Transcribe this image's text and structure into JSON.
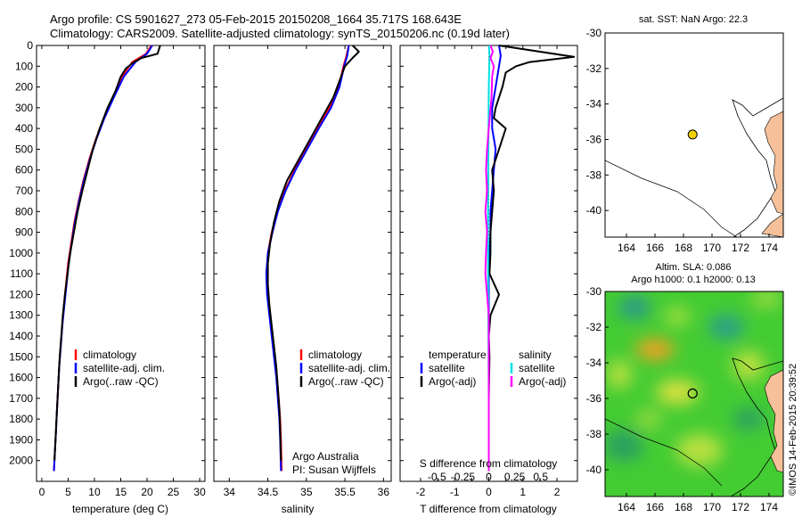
{
  "header": {
    "title_line1": "Argo profile: CS 5901627_273 05-Feb-2015 20150208_1664 35.717S 168.643E",
    "title_line2": "Climatology: CARS2009. Satellite-adjusted climatology: synTS_20150206.nc (0.19d later)"
  },
  "colors": {
    "climatology": "#ff0000",
    "satellite": "#0000ff",
    "argo": "#000000",
    "sal_satellite": "#00e0e0",
    "sal_argo": "#ff00ff",
    "land": "#f5c09a",
    "float": "#f0d000",
    "sla_base": "#33cc33"
  },
  "watermark": "©IMOS 14-Feb-2015 20:39:52",
  "chart_data": [
    {
      "type": "line",
      "id": "temperature",
      "xlabel": "temperature (deg C)",
      "ylabel": "",
      "xlim": [
        -1,
        31
      ],
      "ylim": [
        2100,
        0
      ],
      "xticks": [
        "0",
        "5",
        "10",
        "15",
        "20",
        "25",
        "30"
      ],
      "yticks": [
        "0",
        "100",
        "200",
        "300",
        "400",
        "500",
        "600",
        "700",
        "800",
        "900",
        "1000",
        "1100",
        "1200",
        "1300",
        "1400",
        "1500",
        "1600",
        "1700",
        "1800",
        "1900",
        "2000"
      ],
      "legend": [
        "climatology",
        "satellite-adj. clim.",
        "Argo(..raw -QC)"
      ],
      "series": [
        {
          "name": "climatology",
          "color": "red",
          "points": [
            [
              20.8,
              0
            ],
            [
              19.8,
              40
            ],
            [
              17.2,
              80
            ],
            [
              15.2,
              150
            ],
            [
              13.5,
              250
            ],
            [
              11.8,
              350
            ],
            [
              10.3,
              450
            ],
            [
              9,
              550
            ],
            [
              7.9,
              650
            ],
            [
              7,
              750
            ],
            [
              6.2,
              850
            ],
            [
              5.6,
              950
            ],
            [
              5,
              1050
            ],
            [
              4.6,
              1150
            ],
            [
              4.2,
              1250
            ],
            [
              3.9,
              1350
            ],
            [
              3.6,
              1450
            ],
            [
              3.3,
              1550
            ],
            [
              3.1,
              1650
            ],
            [
              2.9,
              1750
            ],
            [
              2.7,
              1850
            ],
            [
              2.5,
              1950
            ],
            [
              2.3,
              2050
            ]
          ]
        },
        {
          "name": "satellite-adj. clim.",
          "color": "blue",
          "points": [
            [
              21,
              0
            ],
            [
              20,
              40
            ],
            [
              17.8,
              80
            ],
            [
              15.6,
              150
            ],
            [
              13.7,
              250
            ],
            [
              11.9,
              350
            ],
            [
              10.4,
              450
            ],
            [
              9.1,
              550
            ],
            [
              8,
              650
            ],
            [
              7.1,
              750
            ],
            [
              6.3,
              850
            ],
            [
              5.7,
              950
            ],
            [
              5.1,
              1050
            ],
            [
              4.7,
              1150
            ],
            [
              4.3,
              1250
            ],
            [
              3.9,
              1350
            ],
            [
              3.6,
              1450
            ],
            [
              3.3,
              1550
            ],
            [
              3.1,
              1650
            ],
            [
              2.9,
              1750
            ],
            [
              2.7,
              1850
            ],
            [
              2.5,
              1950
            ],
            [
              2.3,
              2050
            ]
          ]
        },
        {
          "name": "Argo(..raw -QC)",
          "color": "black",
          "points": [
            [
              22.5,
              0
            ],
            [
              22.3,
              15
            ],
            [
              22,
              40
            ],
            [
              19,
              60
            ],
            [
              17.5,
              80
            ],
            [
              16,
              110
            ],
            [
              15,
              150
            ],
            [
              14,
              220
            ],
            [
              12.5,
              300
            ],
            [
              11,
              400
            ],
            [
              9.7,
              500
            ],
            [
              8.7,
              600
            ],
            [
              7.7,
              700
            ],
            [
              6.8,
              800
            ],
            [
              6.1,
              900
            ],
            [
              5.4,
              1000
            ],
            [
              4.9,
              1100
            ],
            [
              4.4,
              1200
            ],
            [
              4,
              1300
            ],
            [
              3.7,
              1400
            ],
            [
              3.4,
              1500
            ],
            [
              3.2,
              1600
            ],
            [
              3,
              1700
            ],
            [
              2.8,
              1800
            ],
            [
              2.6,
              1900
            ],
            [
              2.4,
              2000
            ]
          ]
        }
      ]
    },
    {
      "type": "line",
      "id": "salinity",
      "xlabel": "salinity",
      "xlim": [
        33.8,
        36.1
      ],
      "ylim": [
        2100,
        0
      ],
      "xticks": [
        "34",
        "34.5",
        "35",
        "35.5",
        "36"
      ],
      "legend": [
        "climatology",
        "satellite-adj. clim.",
        "Argo(..raw -QC)"
      ],
      "credit_line1": "Argo Australia",
      "credit_line2": "PI: Susan Wijffels",
      "series": [
        {
          "name": "climatology",
          "color": "red",
          "points": [
            [
              35.55,
              0
            ],
            [
              35.52,
              50
            ],
            [
              35.48,
              100
            ],
            [
              35.42,
              200
            ],
            [
              35.3,
              300
            ],
            [
              35.15,
              400
            ],
            [
              35,
              500
            ],
            [
              34.85,
              600
            ],
            [
              34.72,
              700
            ],
            [
              34.62,
              800
            ],
            [
              34.55,
              900
            ],
            [
              34.5,
              1000
            ],
            [
              34.49,
              1100
            ],
            [
              34.5,
              1200
            ],
            [
              34.53,
              1300
            ],
            [
              34.56,
              1400
            ],
            [
              34.59,
              1500
            ],
            [
              34.62,
              1600
            ],
            [
              34.64,
              1700
            ],
            [
              34.66,
              1800
            ],
            [
              34.67,
              1900
            ],
            [
              34.68,
              2050
            ]
          ]
        },
        {
          "name": "satellite-adj. clim.",
          "color": "blue",
          "points": [
            [
              35.55,
              0
            ],
            [
              35.53,
              50
            ],
            [
              35.49,
              100
            ],
            [
              35.43,
              200
            ],
            [
              35.32,
              300
            ],
            [
              35.16,
              400
            ],
            [
              35.01,
              500
            ],
            [
              34.86,
              600
            ],
            [
              34.73,
              700
            ],
            [
              34.63,
              800
            ],
            [
              34.56,
              900
            ],
            [
              34.5,
              1000
            ],
            [
              34.48,
              1100
            ],
            [
              34.49,
              1200
            ],
            [
              34.52,
              1300
            ],
            [
              34.55,
              1400
            ],
            [
              34.58,
              1500
            ],
            [
              34.61,
              1600
            ],
            [
              34.63,
              1700
            ],
            [
              34.65,
              1800
            ],
            [
              34.66,
              1900
            ],
            [
              34.67,
              2050
            ]
          ]
        },
        {
          "name": "Argo(..raw -QC)",
          "color": "black",
          "points": [
            [
              35.6,
              0
            ],
            [
              35.68,
              30
            ],
            [
              35.6,
              60
            ],
            [
              35.5,
              100
            ],
            [
              35.45,
              150
            ],
            [
              35.35,
              250
            ],
            [
              35.2,
              350
            ],
            [
              35.05,
              450
            ],
            [
              34.9,
              550
            ],
            [
              34.75,
              650
            ],
            [
              34.65,
              750
            ],
            [
              34.58,
              850
            ],
            [
              34.53,
              950
            ],
            [
              34.5,
              1050
            ],
            [
              34.5,
              1150
            ],
            [
              34.52,
              1250
            ],
            [
              34.55,
              1350
            ],
            [
              34.58,
              1450
            ],
            [
              34.61,
              1550
            ],
            [
              34.63,
              1650
            ],
            [
              34.65,
              1750
            ],
            [
              34.66,
              1850
            ],
            [
              34.67,
              2000
            ]
          ]
        }
      ]
    },
    {
      "type": "line",
      "id": "difference",
      "xlabel": "T difference from climatology",
      "xlabel_top": "S difference from climatology",
      "xlim": [
        -2.6,
        2.6
      ],
      "ylim": [
        2100,
        0
      ],
      "xticks": [
        "-2",
        "-1.5",
        "-1",
        "-0.5",
        "0",
        "0.5",
        "1",
        "1.5",
        "2"
      ],
      "xticks_shown": [
        "-2",
        "-1",
        "0",
        "1",
        "2"
      ],
      "s_ticks": [
        "-0.5",
        "-0.25",
        "0",
        "0.25",
        "0.5"
      ],
      "legend_left_title": "temperature",
      "legend_right_title": "salinity",
      "legend_left": [
        "satellite",
        "Argo(-adj)"
      ],
      "legend_right": [
        "satellite",
        "Argo(-adj)"
      ],
      "series": [
        {
          "name": "T satellite",
          "color": "blue",
          "points": [
            [
              0.3,
              0
            ],
            [
              0.35,
              50
            ],
            [
              0.3,
              100
            ],
            [
              0.2,
              200
            ],
            [
              0.1,
              300
            ],
            [
              0.1,
              400
            ],
            [
              0.2,
              500
            ],
            [
              0.15,
              600
            ],
            [
              0.1,
              700
            ],
            [
              0.05,
              800
            ],
            [
              0.05,
              900
            ],
            [
              0.02,
              1000
            ],
            [
              0,
              1100
            ],
            [
              0,
              1300
            ],
            [
              0,
              1500
            ],
            [
              0,
              1800
            ],
            [
              0,
              2050
            ]
          ]
        },
        {
          "name": "T Argo(-adj)",
          "color": "black",
          "points": [
            [
              0.3,
              0
            ],
            [
              2.5,
              55
            ],
            [
              1.2,
              80
            ],
            [
              0.8,
              100
            ],
            [
              0.5,
              130
            ],
            [
              0.4,
              200
            ],
            [
              0.2,
              300
            ],
            [
              0.15,
              350
            ],
            [
              0.5,
              400
            ],
            [
              0.3,
              500
            ],
            [
              0.1,
              600
            ],
            [
              0.15,
              700
            ],
            [
              0.1,
              800
            ],
            [
              0.05,
              900
            ],
            [
              0.05,
              1000
            ],
            [
              0.02,
              1100
            ],
            [
              0.3,
              1200
            ],
            [
              0.05,
              1300
            ],
            [
              0,
              1400
            ],
            [
              0.02,
              1500
            ],
            [
              0,
              1700
            ],
            [
              0,
              2050
            ]
          ]
        },
        {
          "name": "S satellite",
          "color": "cyan",
          "points": [
            [
              0,
              0
            ],
            [
              0.02,
              50
            ],
            [
              0,
              200
            ],
            [
              -0.01,
              500
            ],
            [
              -0.02,
              800
            ],
            [
              -0.02,
              1100
            ],
            [
              -0.01,
              1400
            ],
            [
              0,
              1700
            ],
            [
              0,
              2050
            ]
          ]
        },
        {
          "name": "S Argo(-adj)",
          "color": "magenta",
          "points": [
            [
              0.05,
              0
            ],
            [
              0.12,
              30
            ],
            [
              0.05,
              60
            ],
            [
              0.15,
              100
            ],
            [
              0.1,
              150
            ],
            [
              0.08,
              250
            ],
            [
              0,
              400
            ],
            [
              -0.05,
              500
            ],
            [
              -0.08,
              600
            ],
            [
              -0.05,
              700
            ],
            [
              -0.1,
              800
            ],
            [
              -0.05,
              900
            ],
            [
              -0.08,
              1000
            ],
            [
              -0.1,
              1100
            ],
            [
              -0.05,
              1200
            ],
            [
              0,
              1300
            ],
            [
              0,
              1500
            ],
            [
              0,
              2050
            ]
          ]
        }
      ]
    },
    {
      "type": "map",
      "id": "sst_map",
      "title": "sat. SST: NaN Argo: 22.3",
      "xlim": [
        162.5,
        175
      ],
      "ylim": [
        -41.5,
        -30
      ],
      "xticks": [
        "164",
        "166",
        "168",
        "170",
        "172",
        "174"
      ],
      "yticks": [
        "-30",
        "-32",
        "-34",
        "-36",
        "-38",
        "-40"
      ],
      "float_position": [
        168.64,
        -35.72
      ]
    },
    {
      "type": "map",
      "id": "sla_map",
      "title_line1": "Altim. SLA: 0.086",
      "title_line2": "Argo h1000: 0.1 h2000: 0.13",
      "xlim": [
        162.5,
        175
      ],
      "ylim": [
        -41.5,
        -30
      ],
      "xticks": [
        "164",
        "166",
        "168",
        "170",
        "172",
        "174"
      ],
      "yticks": [
        "-30",
        "-32",
        "-34",
        "-36",
        "-38",
        "-40"
      ],
      "float_position": [
        168.64,
        -35.72
      ]
    }
  ]
}
